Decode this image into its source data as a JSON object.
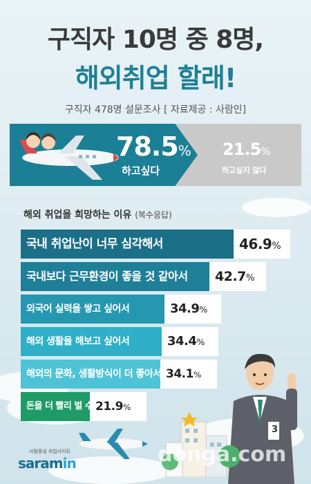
{
  "header": {
    "title_line1": "구직자 10명 중 8명,",
    "title_line2": "해외취업 할래!",
    "subtitle": "구직자 478명 설문조사 [ 자료제공 : 사람인]"
  },
  "summary": {
    "yes_value": "78.5",
    "yes_unit": "%",
    "yes_label": "하고싶다",
    "no_value": "21.5",
    "no_unit": "%",
    "no_label": "하고싶지 않다"
  },
  "section": {
    "title": "해외 취업을 희망하는 이유",
    "note": "(복수응답)"
  },
  "chart_data": {
    "type": "bar",
    "categories": [
      "국내 취업난이 너무 심각해서",
      "국내보다 근무환경이 좋을 것 같아서",
      "외국어 실력을 쌓고 싶어서",
      "해외 생활을 해보고 싶어서",
      "해외의 문화, 생활방식이 더 좋아서",
      "돈을 더 빨리 벌 수 있어서"
    ],
    "values": [
      46.9,
      42.7,
      34.9,
      34.4,
      34.1,
      21.9
    ],
    "value_labels": [
      "46.9",
      "42.7",
      "34.9",
      "34.4",
      "34.1",
      "21.9"
    ],
    "unit": "%",
    "orientation": "horizontal",
    "colors": [
      "#1b6f86",
      "#1f7e98",
      "#2597b0",
      "#2fb0c8",
      "#4fc3d6",
      "#1f9b68"
    ]
  },
  "logo": {
    "brand": "saram",
    "brand_suffix": "in",
    "tagline": "사람중심 취업사이트"
  },
  "watermark": "donga.com",
  "badge": "3"
}
